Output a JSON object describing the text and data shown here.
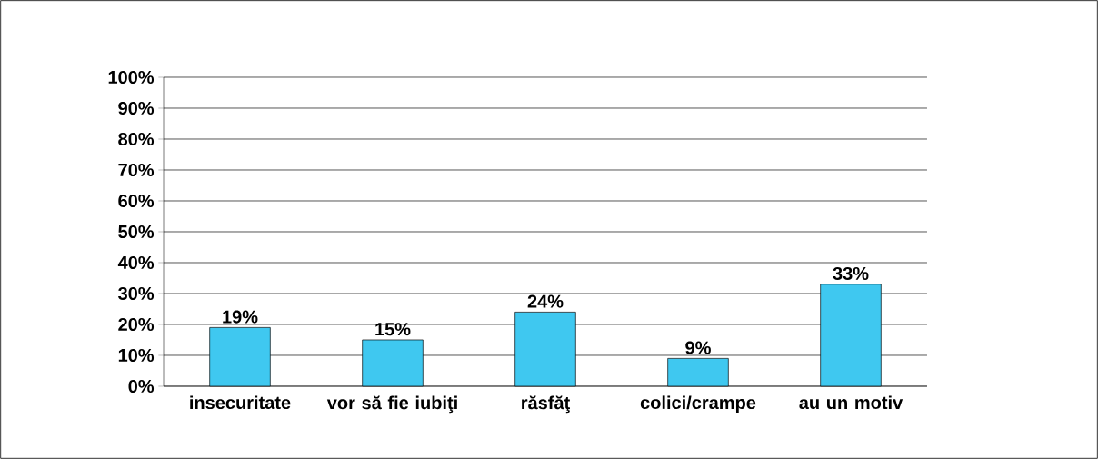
{
  "chart_data": {
    "type": "bar",
    "categories": [
      "insecuritate",
      "vor să fie iubiţi",
      "răsfăţ",
      "colici/crampe",
      "au un motiv"
    ],
    "values": [
      19,
      15,
      24,
      9,
      33
    ],
    "value_labels": [
      "19%",
      "15%",
      "24%",
      "9%",
      "33%"
    ],
    "color": "#3fc8f0",
    "ylim": [
      0,
      100
    ],
    "yticks": [
      {
        "value": 0,
        "label": "0%"
      },
      {
        "value": 10,
        "label": "10%"
      },
      {
        "value": 20,
        "label": "20%"
      },
      {
        "value": 30,
        "label": "30%"
      },
      {
        "value": 40,
        "label": "40%"
      },
      {
        "value": 50,
        "label": "50%"
      },
      {
        "value": 60,
        "label": "60%"
      },
      {
        "value": 70,
        "label": "70%"
      },
      {
        "value": 80,
        "label": "80%"
      },
      {
        "value": 90,
        "label": "90%"
      },
      {
        "value": 100,
        "label": "100%"
      }
    ],
    "grid": "y"
  }
}
